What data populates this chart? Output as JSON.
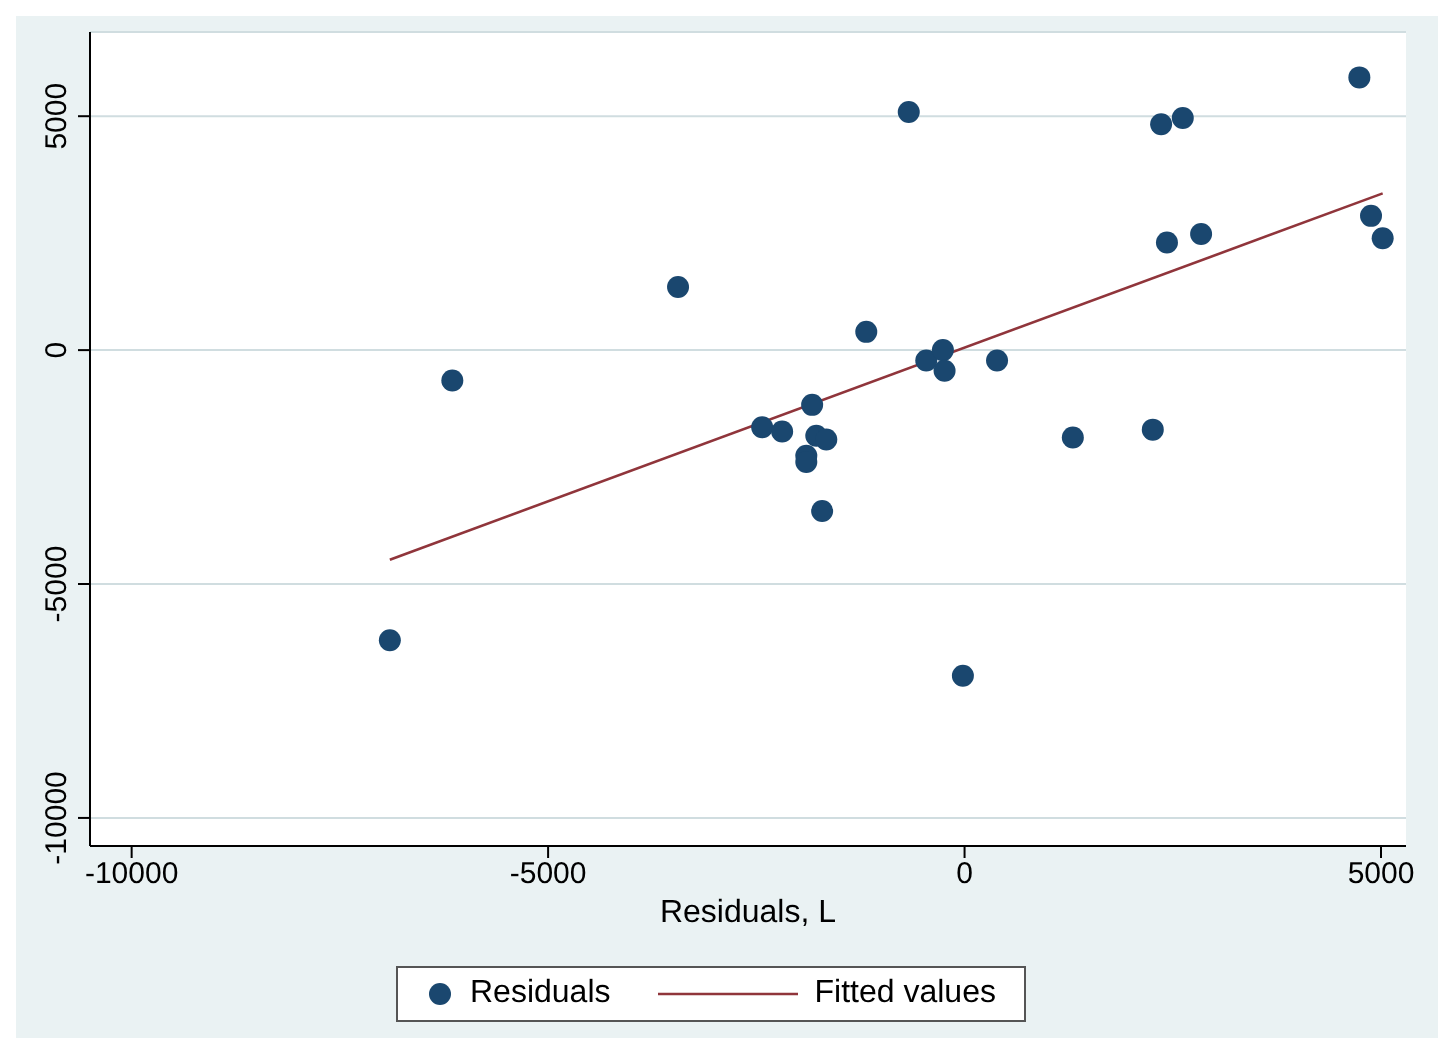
{
  "chart_data": {
    "type": "scatter",
    "xlabel": "Residuals, L",
    "xlim": [
      -10500,
      5300
    ],
    "ylim": [
      -10600,
      6800
    ],
    "xticks": [
      -10000,
      -5000,
      0,
      5000
    ],
    "yticks": [
      -10000,
      -5000,
      0,
      5000
    ],
    "grid": "y",
    "legend": "bottom",
    "marker": "circle",
    "series": [
      {
        "name": "Residuals",
        "color": "#1a476f",
        "x": [
          -6900,
          -6150,
          -3440,
          -2430,
          -2190,
          -1900,
          -1900,
          -1830,
          -1780,
          -1660,
          -1710,
          -1180,
          -670,
          -460,
          -260,
          -240,
          -20,
          390,
          1300,
          2260,
          2360,
          2430,
          2620,
          2840,
          4740,
          4880,
          5020
        ],
        "values": [
          -6200,
          -650,
          1350,
          -1650,
          -1740,
          -2260,
          -2390,
          -1170,
          -1830,
          -1910,
          -3440,
          390,
          5090,
          -220,
          0,
          -440,
          -6960,
          -220,
          -1870,
          -1700,
          4830,
          2300,
          4960,
          2480,
          5830,
          2870,
          2390
        ]
      },
      {
        "name": "Fitted values",
        "type": "line",
        "color": "#90353b",
        "marker": "none",
        "line_style": "solid",
        "x": [
          -6900,
          5020
        ],
        "values": [
          -4480,
          3350
        ]
      }
    ]
  }
}
